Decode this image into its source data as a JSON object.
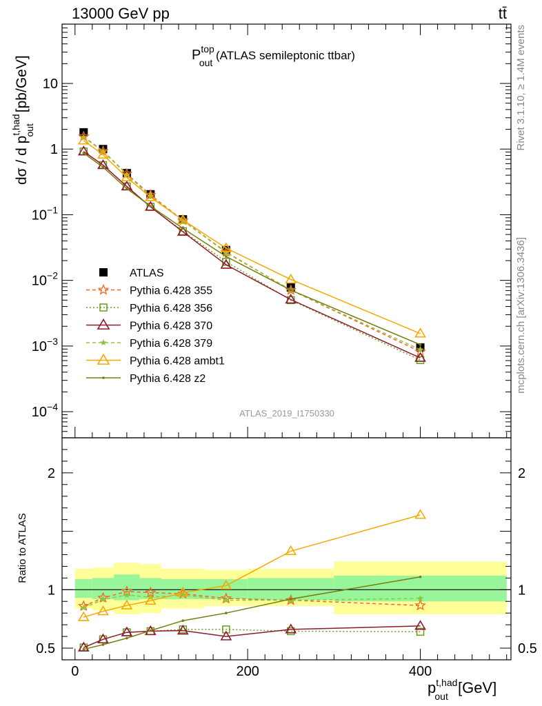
{
  "header": {
    "left": "13000 GeV pp",
    "right": "tt̄"
  },
  "side_text": {
    "rivet": "Rivet 3.1.10, ≥ 1.4M events",
    "mcplots": "mcplots.cern.ch [arXiv:1306.3436]"
  },
  "analysis_id": "ATLAS_2019_I1750330",
  "chart_data": [
    {
      "type": "line",
      "panel": "main",
      "title": {
        "main": "P",
        "sup": "top",
        "sub": "out",
        "rest": " (ATLAS semileptonic ttbar)"
      },
      "ylabel": {
        "prefix": "dσ / d p",
        "sup": "t,had",
        "sub": "out",
        "suffix": " [pb/GeV]"
      },
      "yscale": "log",
      "ylim": [
        4e-05,
        80
      ],
      "xlim": [
        -15,
        505
      ],
      "y_tick_labels": [
        {
          "value": 10,
          "text": "10"
        },
        {
          "value": 1,
          "text": "1"
        },
        {
          "value": 0.1,
          "base": "10",
          "exp": "−1"
        },
        {
          "value": 0.01,
          "base": "10",
          "exp": "−2"
        },
        {
          "value": 0.001,
          "base": "10",
          "exp": "−3"
        },
        {
          "value": 0.0001,
          "base": "10",
          "exp": "−4"
        }
      ],
      "legend_position": "bottom-left",
      "x": [
        10,
        32.5,
        60,
        87.5,
        125,
        175,
        250,
        400
      ],
      "series": [
        {
          "name": "ATLAS",
          "color": "#000000",
          "marker": "filled-square",
          "line": "none",
          "values": [
            1.8,
            1.0,
            0.43,
            0.205,
            0.085,
            0.029,
            0.0078,
            0.00095
          ]
        },
        {
          "name": "Pythia 6.428 355",
          "color": "#f26522",
          "marker": "open-star",
          "line": "dashed",
          "values": [
            1.55,
            0.93,
            0.42,
            0.2,
            0.082,
            0.027,
            0.0071,
            0.00082
          ]
        },
        {
          "name": "Pythia 6.428 356",
          "color": "#6a9a1a",
          "marker": "open-square",
          "line": "dotted",
          "values": [
            0.92,
            0.57,
            0.27,
            0.132,
            0.056,
            0.0192,
            0.005,
            0.00061
          ]
        },
        {
          "name": "Pythia 6.428 370",
          "color": "#8b1a2b",
          "marker": "open-triangle",
          "line": "solid",
          "values": [
            0.92,
            0.57,
            0.27,
            0.132,
            0.055,
            0.0173,
            0.0051,
            0.00066
          ]
        },
        {
          "name": "Pythia 6.428 379",
          "color": "#8dc63f",
          "marker": "filled-star",
          "line": "dashed",
          "values": [
            1.52,
            0.92,
            0.41,
            0.19,
            0.081,
            0.0265,
            0.0071,
            0.00088
          ]
        },
        {
          "name": "Pythia 6.428 ambt1",
          "color": "#f5a800",
          "marker": "open-triangle",
          "line": "solid",
          "values": [
            1.35,
            0.82,
            0.37,
            0.185,
            0.083,
            0.031,
            0.0103,
            0.00155
          ]
        },
        {
          "name": "Pythia 6.428 z2",
          "color": "#7a7a10",
          "marker": "dot",
          "line": "solid",
          "values": [
            0.87,
            0.53,
            0.25,
            0.135,
            0.062,
            0.0231,
            0.0071,
            0.00105
          ]
        }
      ]
    },
    {
      "type": "line",
      "panel": "ratio",
      "ylabel": "Ratio to ATLAS",
      "xlabel": {
        "prefix": "p",
        "sup": "t,had",
        "sub": "out",
        "suffix": " [GeV]"
      },
      "ylim": [
        0.4,
        2.3
      ],
      "xlim": [
        -15,
        505
      ],
      "x_ticks": [
        0,
        200,
        400
      ],
      "y_ticks": [
        0.5,
        1,
        2
      ],
      "reference_line": 1,
      "bands": {
        "bin_edges": [
          0,
          20,
          45,
          75,
          100,
          150,
          200,
          300,
          500
        ],
        "stat_color": "#99f599",
        "total_color": "#ffff99",
        "stat": [
          [
            0.93,
            1.09
          ],
          [
            0.92,
            1.1
          ],
          [
            0.91,
            1.13
          ],
          [
            0.92,
            1.1
          ],
          [
            0.92,
            1.09
          ],
          [
            0.92,
            1.09
          ],
          [
            0.91,
            1.1
          ],
          [
            0.9,
            1.12
          ]
        ],
        "total": [
          [
            0.84,
            1.18
          ],
          [
            0.82,
            1.19
          ],
          [
            0.79,
            1.23
          ],
          [
            0.8,
            1.22
          ],
          [
            0.84,
            1.18
          ],
          [
            0.86,
            1.17
          ],
          [
            0.86,
            1.18
          ],
          [
            0.79,
            1.24
          ]
        ]
      },
      "x": [
        10,
        32.5,
        60,
        87.5,
        125,
        175,
        250,
        400
      ],
      "series": [
        {
          "name": "Pythia 6.428 355",
          "color": "#f26522",
          "marker": "open-star",
          "line": "dashed",
          "values": [
            0.86,
            0.93,
            0.985,
            0.975,
            0.965,
            0.925,
            0.91,
            0.865
          ]
        },
        {
          "name": "Pythia 6.428 356",
          "color": "#6a9a1a",
          "marker": "open-square",
          "line": "dotted",
          "values": [
            0.505,
            0.575,
            0.635,
            0.645,
            0.66,
            0.66,
            0.645,
            0.64
          ]
        },
        {
          "name": "Pythia 6.428 370",
          "color": "#8b1a2b",
          "marker": "open-triangle",
          "line": "solid",
          "values": [
            0.505,
            0.575,
            0.635,
            0.645,
            0.65,
            0.6,
            0.66,
            0.69
          ]
        },
        {
          "name": "Pythia 6.428 379",
          "color": "#8dc63f",
          "marker": "filled-star",
          "line": "dashed",
          "values": [
            0.845,
            0.915,
            0.955,
            0.935,
            0.955,
            0.91,
            0.91,
            0.925
          ]
        },
        {
          "name": "Pythia 6.428 ambt1",
          "color": "#f5a800",
          "marker": "open-triangle",
          "line": "solid",
          "values": [
            0.765,
            0.815,
            0.865,
            0.905,
            0.975,
            1.035,
            1.33,
            1.64
          ]
        },
        {
          "name": "Pythia 6.428 z2",
          "color": "#7a7a10",
          "marker": "dot",
          "line": "solid",
          "values": [
            0.49,
            0.53,
            0.585,
            0.65,
            0.735,
            0.8,
            0.92,
            1.11
          ]
        }
      ]
    }
  ]
}
